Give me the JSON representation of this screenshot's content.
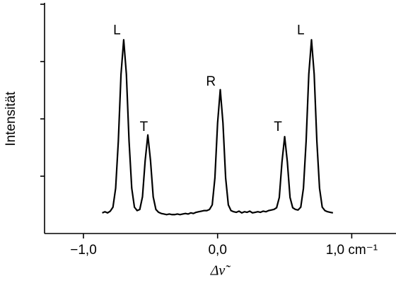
{
  "chart_data": {
    "type": "line",
    "xlabel": "Δν̃",
    "ylabel": "Intensität",
    "x": [
      -0.86,
      -0.84,
      -0.82,
      -0.8,
      -0.78,
      -0.76,
      -0.74,
      -0.72,
      -0.7,
      -0.68,
      -0.66,
      -0.64,
      -0.62,
      -0.6,
      -0.58,
      -0.56,
      -0.54,
      -0.52,
      -0.5,
      -0.48,
      -0.46,
      -0.44,
      -0.42,
      -0.4,
      -0.38,
      -0.36,
      -0.34,
      -0.32,
      -0.3,
      -0.28,
      -0.26,
      -0.24,
      -0.22,
      -0.2,
      -0.18,
      -0.16,
      -0.14,
      -0.12,
      -0.1,
      -0.08,
      -0.06,
      -0.04,
      -0.02,
      0.0,
      0.02,
      0.04,
      0.06,
      0.08,
      0.1,
      0.12,
      0.14,
      0.16,
      0.18,
      0.2,
      0.22,
      0.24,
      0.26,
      0.28,
      0.3,
      0.32,
      0.34,
      0.36,
      0.38,
      0.4,
      0.42,
      0.44,
      0.46,
      0.48,
      0.5,
      0.52,
      0.54,
      0.56,
      0.58,
      0.6,
      0.62,
      0.64,
      0.66,
      0.68,
      0.7,
      0.72,
      0.74,
      0.76,
      0.78,
      0.8,
      0.82,
      0.84,
      0.86
    ],
    "values": [
      0.36,
      0.38,
      0.36,
      0.39,
      0.46,
      0.79,
      1.61,
      2.78,
      3.38,
      2.78,
      1.61,
      0.79,
      0.46,
      0.4,
      0.42,
      0.64,
      1.27,
      1.72,
      1.27,
      0.64,
      0.42,
      0.37,
      0.35,
      0.34,
      0.33,
      0.34,
      0.33,
      0.33,
      0.34,
      0.33,
      0.34,
      0.35,
      0.34,
      0.36,
      0.35,
      0.37,
      0.38,
      0.39,
      0.4,
      0.4,
      0.42,
      0.5,
      0.97,
      1.93,
      2.51,
      1.93,
      0.97,
      0.5,
      0.4,
      0.38,
      0.37,
      0.39,
      0.36,
      0.38,
      0.37,
      0.39,
      0.36,
      0.37,
      0.38,
      0.37,
      0.39,
      0.38,
      0.4,
      0.41,
      0.42,
      0.45,
      0.63,
      1.25,
      1.69,
      1.25,
      0.63,
      0.45,
      0.42,
      0.41,
      0.46,
      0.79,
      1.61,
      2.78,
      3.38,
      2.78,
      1.61,
      0.79,
      0.46,
      0.4,
      0.38,
      0.37,
      0.36
    ],
    "color": "#000000",
    "xlim": [
      -1.29,
      1.33
    ],
    "ylim": [
      0,
      4
    ],
    "xticks": [
      {
        "value": -1,
        "label": "−1,0"
      },
      {
        "value": 0,
        "label": "0,0"
      },
      {
        "value": 1,
        "label": "1,0 cm⁻¹"
      }
    ],
    "yticks": [
      1,
      2,
      3,
      4
    ],
    "annotations": [
      {
        "text": "L",
        "x": -0.75,
        "y": 3.54
      },
      {
        "text": "T",
        "x": -0.55,
        "y": 1.85
      },
      {
        "text": "R",
        "x": -0.05,
        "y": 2.64
      },
      {
        "text": "T",
        "x": 0.45,
        "y": 1.85
      },
      {
        "text": "L",
        "x": 0.62,
        "y": 3.54
      }
    ]
  }
}
